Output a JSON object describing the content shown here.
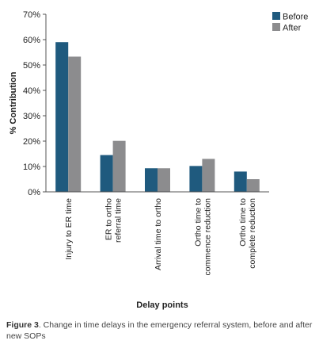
{
  "chart_data": {
    "type": "bar",
    "categories": [
      [
        "Injury to ER time"
      ],
      [
        "ER to ortho",
        "referral time"
      ],
      [
        "Arrival time to ortho"
      ],
      [
        "Ortho time to",
        "commence reduction"
      ],
      [
        "Ortho time to",
        "complete reduction"
      ]
    ],
    "series": [
      {
        "name": "Before",
        "color": "#1f5a7e",
        "values": [
          59,
          14.5,
          9.3,
          10.2,
          8
        ]
      },
      {
        "name": "After",
        "color": "#8c8c8e",
        "values": [
          53.3,
          20.1,
          9.3,
          13,
          5
        ]
      }
    ],
    "xlabel": "Delay points",
    "ylabel": "% Contribution",
    "ylim": [
      0,
      70
    ],
    "yticks": [
      "0%",
      "10%",
      "20%",
      "30%",
      "40%",
      "50%",
      "60%",
      "70%"
    ],
    "grid": false,
    "legend": "top-right"
  },
  "caption": {
    "figure_label": "Figure 3",
    "text": ". Change in time delays in the emergency referral system, before and after new SOPs"
  }
}
